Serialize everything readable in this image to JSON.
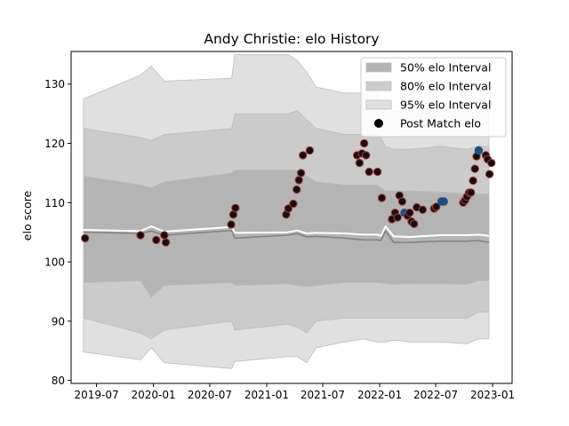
{
  "chart_data": {
    "type": "scatter",
    "title": "Andy Christie: elo History",
    "xlabel": "",
    "ylabel": "elo score",
    "xlim": [
      "2019-04-10",
      "2023-03-05"
    ],
    "ylim": [
      79.5,
      135.5
    ],
    "x_ticks": [
      "2019-07",
      "2020-01",
      "2020-07",
      "2021-01",
      "2021-07",
      "2022-01",
      "2022-07",
      "2023-01"
    ],
    "y_ticks": [
      80,
      90,
      100,
      110,
      120,
      130
    ],
    "grid": false,
    "legend": {
      "position": "top-right",
      "entries": [
        "50% elo Interval",
        "80% elo Interval",
        "95% elo Interval",
        "Post Match elo"
      ]
    },
    "colors": {
      "band_95": "#e0e0e0",
      "band_80": "#cbcbcb",
      "band_50": "#b4b4b4",
      "band_edge": "#bdbdbd",
      "median_line": "#808080",
      "mean_line": "#ffffff",
      "win_marker": "#b03a3a",
      "loss_marker": "#1f4f7f"
    },
    "intervals": {
      "x": [
        "2019-05-20",
        "2019-11-20",
        "2019-12-25",
        "2020-02-05",
        "2020-09-10",
        "2020-09-20",
        "2021-03-10",
        "2021-04-10",
        "2021-05-10",
        "2021-06-10",
        "2021-09-10",
        "2021-11-10",
        "2021-12-25",
        "2022-01-05",
        "2022-01-20",
        "2022-02-15",
        "2022-04-10",
        "2022-07-15",
        "2022-10-10",
        "2022-11-15",
        "2022-12-20"
      ],
      "p95_high": [
        127.5,
        131.5,
        133,
        130.5,
        131,
        135,
        135,
        134,
        132,
        129.5,
        128.5,
        128.5,
        128.5,
        127,
        125,
        125.5,
        125,
        125.5,
        125,
        125.5,
        125.5
      ],
      "p95_low": [
        84.8,
        83.5,
        85.5,
        83,
        82,
        83.2,
        84,
        84,
        83,
        85.5,
        86.5,
        87,
        86.5,
        86.5,
        86.5,
        86.8,
        86.5,
        86.5,
        86.2,
        87,
        87
      ],
      "p80_high": [
        122.5,
        121,
        120.5,
        121.5,
        122.5,
        125,
        125,
        125.5,
        124,
        122.5,
        121.5,
        121.5,
        121.5,
        121,
        119.5,
        119,
        119,
        119.5,
        119,
        119.5,
        119.5
      ],
      "p80_low": [
        90.5,
        88,
        87,
        88.5,
        90,
        88.5,
        89.5,
        89,
        88,
        90,
        90.5,
        90.5,
        90.5,
        90.5,
        90.5,
        90.5,
        90.5,
        90.5,
        90.5,
        91.5,
        91.5
      ],
      "p50_high": [
        114.5,
        113,
        112.5,
        113.5,
        115,
        115.5,
        115.5,
        115.5,
        114.5,
        113.5,
        113,
        113,
        113,
        112.5,
        112,
        112,
        112,
        111.8,
        111.5,
        111.5,
        111.5
      ],
      "p50_low": [
        96.5,
        96.8,
        94,
        96,
        96.5,
        96,
        96.3,
        96,
        95.8,
        96,
        96.5,
        96.5,
        96.5,
        96.5,
        96.3,
        96.2,
        96.3,
        96.3,
        96.2,
        96.8,
        96.8
      ],
      "median": [
        105,
        104.8,
        105.2,
        104.5,
        105.3,
        104,
        104.5,
        104.8,
        104.2,
        104.3,
        104,
        103.7,
        103.7,
        103.6,
        105.2,
        103.3,
        103.3,
        103.5,
        103.5,
        103.6,
        103.3
      ],
      "mean": [
        105.4,
        105.2,
        106,
        105.1,
        105.9,
        104.9,
        105,
        105.3,
        104.8,
        104.9,
        104.8,
        104.6,
        104.6,
        104.4,
        106,
        104.3,
        104.2,
        104.5,
        104.5,
        104.6,
        104.4
      ]
    },
    "points": [
      {
        "x": "2019-05-25",
        "y": 104,
        "result": "win"
      },
      {
        "x": "2019-11-20",
        "y": 104.5,
        "result": "win"
      },
      {
        "x": "2020-01-10",
        "y": 103.7,
        "result": "win"
      },
      {
        "x": "2020-02-05",
        "y": 104.5,
        "result": "win"
      },
      {
        "x": "2020-02-10",
        "y": 103.3,
        "result": "win"
      },
      {
        "x": "2020-09-08",
        "y": 106.3,
        "result": "win"
      },
      {
        "x": "2020-09-15",
        "y": 108,
        "result": "win"
      },
      {
        "x": "2020-09-22",
        "y": 109.1,
        "result": "win"
      },
      {
        "x": "2021-03-05",
        "y": 108,
        "result": "win"
      },
      {
        "x": "2021-03-12",
        "y": 109,
        "result": "win"
      },
      {
        "x": "2021-03-28",
        "y": 109.8,
        "result": "win"
      },
      {
        "x": "2021-04-08",
        "y": 112.2,
        "result": "win"
      },
      {
        "x": "2021-04-15",
        "y": 113.8,
        "result": "win"
      },
      {
        "x": "2021-04-22",
        "y": 115,
        "result": "win"
      },
      {
        "x": "2021-04-28",
        "y": 118,
        "result": "win"
      },
      {
        "x": "2021-05-20",
        "y": 118.8,
        "result": "win"
      },
      {
        "x": "2021-10-20",
        "y": 118,
        "result": "win"
      },
      {
        "x": "2021-10-28",
        "y": 116.7,
        "result": "win"
      },
      {
        "x": "2021-11-05",
        "y": 118.3,
        "result": "win"
      },
      {
        "x": "2021-11-12",
        "y": 120,
        "result": "win"
      },
      {
        "x": "2021-11-18",
        "y": 118,
        "result": "win"
      },
      {
        "x": "2021-11-28",
        "y": 115.2,
        "result": "win"
      },
      {
        "x": "2021-12-25",
        "y": 115.2,
        "result": "win"
      },
      {
        "x": "2022-01-08",
        "y": 110.8,
        "result": "win"
      },
      {
        "x": "2022-02-10",
        "y": 107.2,
        "result": "win"
      },
      {
        "x": "2022-02-20",
        "y": 108.3,
        "result": "win"
      },
      {
        "x": "2022-02-28",
        "y": 107.5,
        "result": "win"
      },
      {
        "x": "2022-03-06",
        "y": 111.2,
        "result": "win"
      },
      {
        "x": "2022-03-15",
        "y": 110.2,
        "result": "win"
      },
      {
        "x": "2022-03-22",
        "y": 108.3,
        "result": "loss"
      },
      {
        "x": "2022-04-01",
        "y": 107.8,
        "result": "win"
      },
      {
        "x": "2022-04-08",
        "y": 108.3,
        "result": "win"
      },
      {
        "x": "2022-04-14",
        "y": 106.8,
        "result": "win"
      },
      {
        "x": "2022-04-22",
        "y": 106.4,
        "result": "win"
      },
      {
        "x": "2022-05-01",
        "y": 109.2,
        "result": "win"
      },
      {
        "x": "2022-05-20",
        "y": 108.8,
        "result": "win"
      },
      {
        "x": "2022-06-26",
        "y": 109,
        "result": "win"
      },
      {
        "x": "2022-07-03",
        "y": 109.3,
        "result": "win"
      },
      {
        "x": "2022-07-20",
        "y": 110.2,
        "result": "loss"
      },
      {
        "x": "2022-07-27",
        "y": 110.2,
        "result": "loss"
      },
      {
        "x": "2022-09-28",
        "y": 110,
        "result": "win"
      },
      {
        "x": "2022-10-04",
        "y": 110.4,
        "result": "win"
      },
      {
        "x": "2022-10-10",
        "y": 111,
        "result": "win"
      },
      {
        "x": "2022-10-17",
        "y": 111.7,
        "result": "win"
      },
      {
        "x": "2022-10-23",
        "y": 111.7,
        "result": "win"
      },
      {
        "x": "2022-10-30",
        "y": 113.7,
        "result": "win"
      },
      {
        "x": "2022-11-05",
        "y": 115.7,
        "result": "win"
      },
      {
        "x": "2022-11-10",
        "y": 117.8,
        "result": "win"
      },
      {
        "x": "2022-11-17",
        "y": 118.8,
        "result": "loss"
      },
      {
        "x": "2022-12-10",
        "y": 118,
        "result": "win"
      },
      {
        "x": "2022-12-16",
        "y": 117.3,
        "result": "win"
      },
      {
        "x": "2022-12-22",
        "y": 114.8,
        "result": "win"
      },
      {
        "x": "2022-12-28",
        "y": 116.7,
        "result": "win"
      }
    ]
  }
}
